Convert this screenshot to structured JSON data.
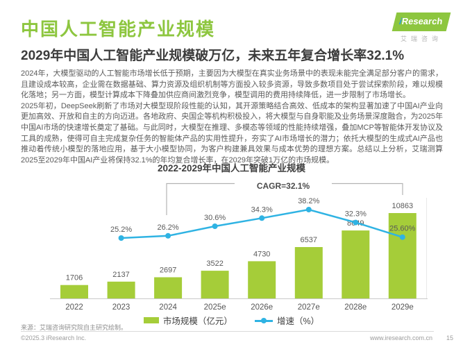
{
  "page": {
    "title": "中国人工智能产业规模",
    "subtitle": "2029年中国人工智能产业规模破万亿，未来五年复合增长率32.1%",
    "logo": {
      "i": "i",
      "name": "Research",
      "cn": "艾瑞咨询"
    },
    "body": {
      "p1": "2024年，大模型驱动的人工智能市场增长低于预期，主要因为大模型在真实业务场景中的表现未能完全满足部分客户的需求，且建设成本较高，企业需在数据基础、算力资源及组织机制等方面投入较多资源，导致多数项目处于尝试探索阶段，难以规模化落地；另一方面，模型计算成本下降叠加供应商间激烈竞争，模型调用的费用持续降低，进一步限制了市场增长。",
      "p2": "2025年初，DeepSeek刷新了市场对大模型现阶段性能的认知，其开源策略结合高效、低成本的架构显著加速了中国AI产业向更加高效、开放和自主的方向迈进。各地政府、央国企等机构积极投入，将大模型与自身职能及业务场景深度融合，为2025年中国AI市场的快速增长奠定了基础。与此同时，大模型在推理、多模态等领域的性能持续增强，叠加MCP等智能体开发协议及工具的成熟，使得可自主完成复杂任务的智能体产品的实用性提升，夯实了AI市场增长的潜力；依托大模型的生成式AI产品也推动着传统小模型的落地应用，基于大小模型协同，为客户构建兼具效果与成本优势的理想方案。总结以上分析，艾瑞测算2025至2029年中国AI产业将保持32.1%的年均复合增长率，在2029年突破1万亿的市场规模。"
    },
    "footer": {
      "source": "来源：艾瑞咨询研究院自主研究绘制。",
      "copyright": "©2025.3 iResearch Inc.",
      "website": "www.iresearch.com.cn",
      "page_number": "15"
    }
  },
  "chart_data": {
    "type": "bar",
    "title": "2022-2029年中国人工智能产业规模",
    "categories": [
      "2022",
      "2023",
      "2024",
      "2025e",
      "2026e",
      "2027e",
      "2028e",
      "2029e"
    ],
    "series": [
      {
        "name": "市场规模（亿元）",
        "type": "bar",
        "values": [
          1706,
          2137,
          2697,
          3522,
          4730,
          6537,
          8649,
          10863
        ]
      },
      {
        "name": "增速（%）",
        "type": "line",
        "values": [
          null,
          25.2,
          26.2,
          30.6,
          34.3,
          38.2,
          32.3,
          25.6
        ],
        "labels": [
          null,
          "25.2%",
          "26.2%",
          "30.6%",
          "34.3%",
          "38.2%",
          "32.3%",
          "25.60%"
        ]
      }
    ],
    "annotation": {
      "label": "CAGR=32.1%",
      "from": "2024",
      "to": "2029e"
    },
    "colors": {
      "bar": "#a5cd39",
      "line": "#2fb3e3",
      "title_green": "#8dc63f",
      "label_gray": "#595959"
    },
    "ylim_bars": [
      0,
      10863
    ],
    "grid": "off",
    "legend_position": "bottom"
  }
}
